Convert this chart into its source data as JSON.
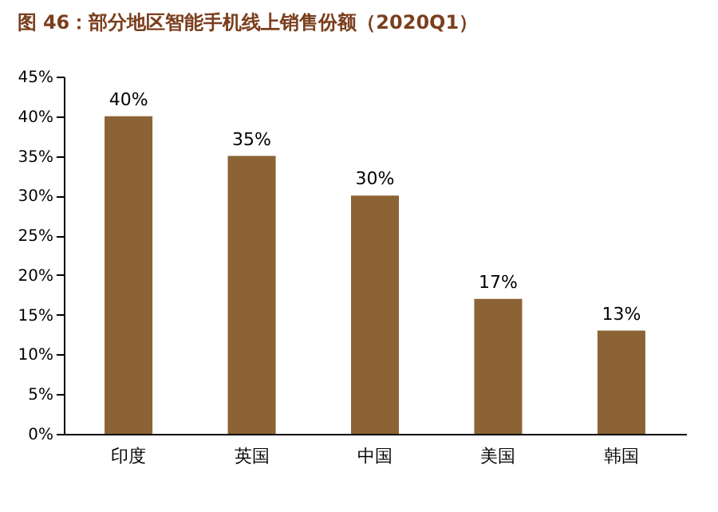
{
  "chart_data": {
    "type": "bar",
    "title": "图 46：部分地区智能手机线上销售份额（2020Q1）",
    "categories": [
      "印度",
      "英国",
      "中国",
      "美国",
      "韩国"
    ],
    "values": [
      40,
      35,
      30,
      17,
      13
    ],
    "value_labels": [
      "40%",
      "35%",
      "30%",
      "17%",
      "13%"
    ],
    "color": "#8b6334",
    "ylim": [
      0,
      45
    ],
    "yticks": [
      {
        "value": 0,
        "label": "0%"
      },
      {
        "value": 5,
        "label": "5%"
      },
      {
        "value": 10,
        "label": "10%"
      },
      {
        "value": 15,
        "label": "15%"
      },
      {
        "value": 20,
        "label": "20%"
      },
      {
        "value": 25,
        "label": "25%"
      },
      {
        "value": 30,
        "label": "30%"
      },
      {
        "value": 35,
        "label": "35%"
      },
      {
        "value": 40,
        "label": "40%"
      },
      {
        "value": 45,
        "label": "45%"
      }
    ],
    "grid": false
  }
}
